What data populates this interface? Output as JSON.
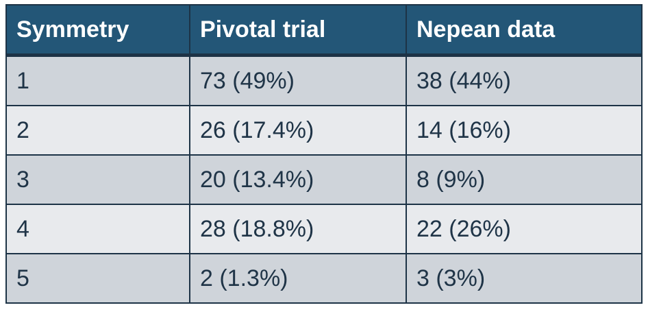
{
  "table": {
    "headers": [
      "Symmetry",
      "Pivotal trial",
      "Nepean data"
    ],
    "rows": [
      [
        "1",
        "73 (49%)",
        "38 (44%)"
      ],
      [
        "2",
        "26 (17.4%)",
        "14 (16%)"
      ],
      [
        "3",
        "20 (13.4%)",
        "8 (9%)"
      ],
      [
        "4",
        "28 (18.8%)",
        "22 (26%)"
      ],
      [
        "5",
        "2 (1.3%)",
        "3 (3%)"
      ]
    ]
  },
  "colors": {
    "header_bg": "#235677",
    "header_text": "#ffffff",
    "row_dark": "#cfd4da",
    "row_light": "#e8eaed",
    "border": "#1d3346",
    "body_text": "#1f3447"
  }
}
